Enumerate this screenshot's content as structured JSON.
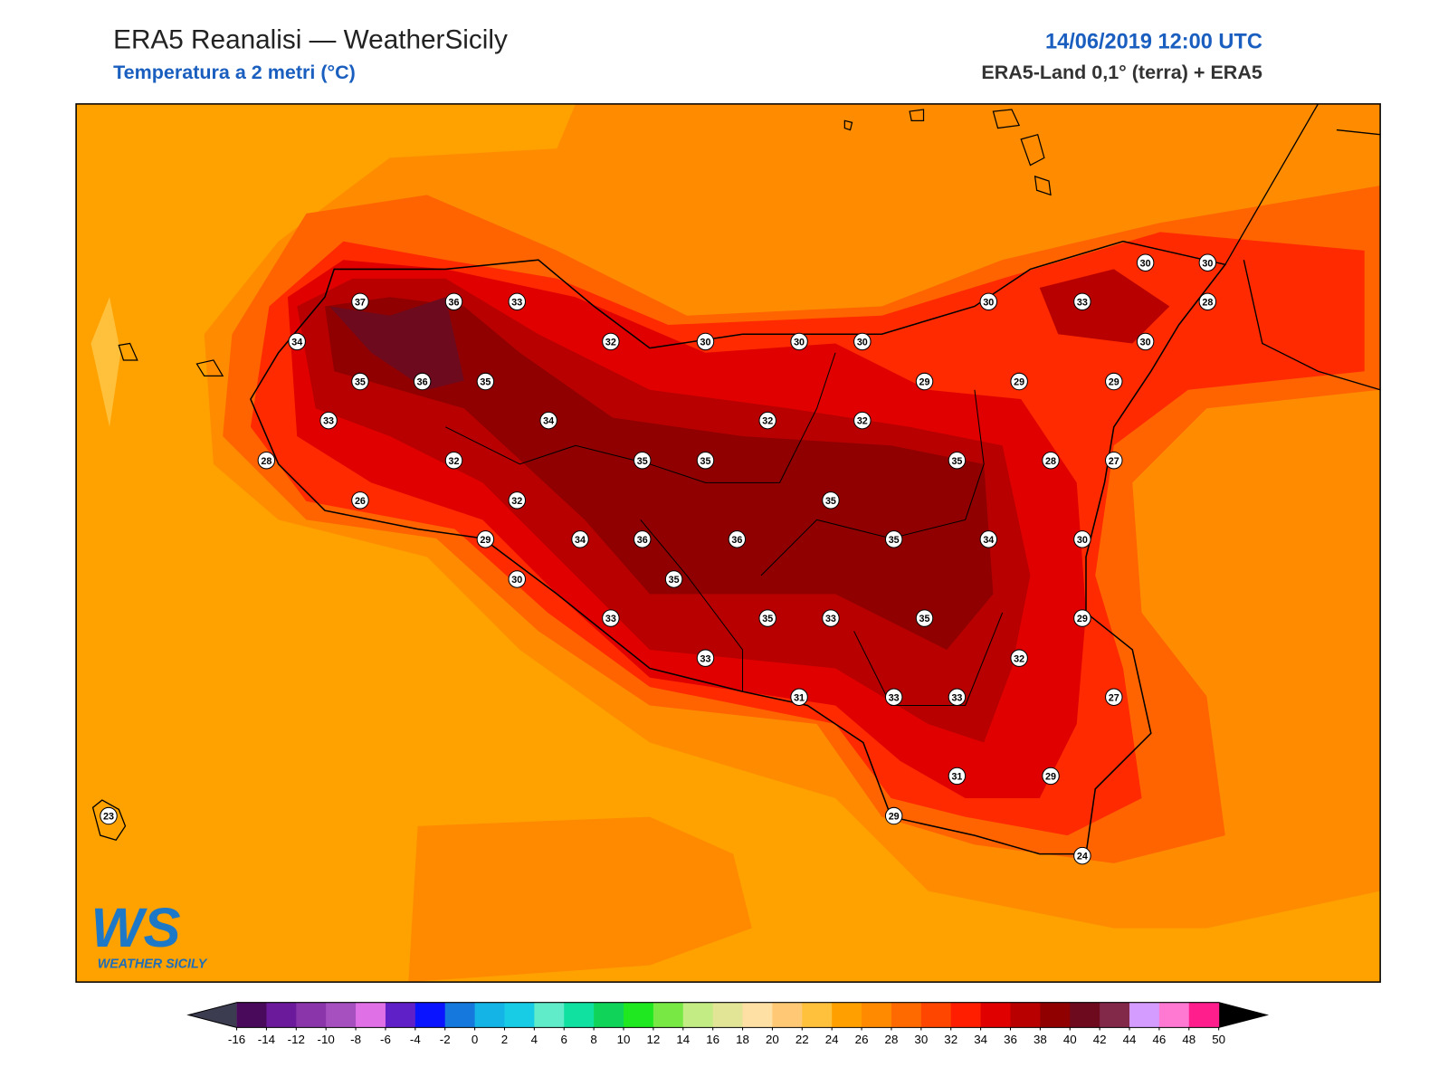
{
  "header": {
    "title": "ERA5 Reanalisi — WeatherSicily",
    "subtitle": "Temperatura a 2 metri (°C)",
    "datetime": "14/06/2019 12:00 UTC",
    "source": "ERA5-Land 0,1° (terra) + ERA5"
  },
  "stations": {
    "values": [
      37,
      36,
      33,
      34,
      32,
      30,
      30,
      30,
      30,
      33,
      30,
      30,
      28,
      30,
      35,
      36,
      35,
      29,
      29,
      29,
      33,
      34,
      32,
      32,
      28,
      32,
      35,
      35,
      35,
      28,
      27,
      26,
      32,
      35,
      29,
      34,
      36,
      36,
      35,
      34,
      30,
      30,
      35,
      33,
      35,
      33,
      35,
      29,
      33,
      32,
      31,
      33,
      33,
      27,
      31,
      29,
      29,
      24,
      23
    ]
  },
  "logo": {
    "mark": "WS",
    "text": "WEATHER SICILY"
  },
  "colorbar": {
    "ticks": [
      -16,
      -14,
      -12,
      -10,
      -8,
      -6,
      -4,
      -2,
      0,
      2,
      4,
      6,
      8,
      10,
      12,
      14,
      16,
      18,
      20,
      22,
      24,
      26,
      28,
      30,
      32,
      34,
      36,
      38,
      40,
      42,
      44,
      46,
      48,
      50
    ],
    "colors": [
      "#4a0a5c",
      "#6a1a9a",
      "#8a36aa",
      "#a650c0",
      "#e070e6",
      "#6020c8",
      "#0a14ff",
      "#1478dc",
      "#14b4e6",
      "#18cce6",
      "#60ecc8",
      "#10e0a0",
      "#10d45a",
      "#20e820",
      "#78e844",
      "#c4ec84",
      "#e2e496",
      "#ffe0a4",
      "#ffc874",
      "#ffc03c",
      "#ffa000",
      "#ff8a00",
      "#ff6a00",
      "#ff4600",
      "#ff1e00",
      "#e00000",
      "#b80000",
      "#900000",
      "#6e0a1e",
      "#822848",
      "#d49cff",
      "#ff78d2",
      "#ff1e8c",
      "#7a7a7a",
      "#3a3a3a"
    ],
    "under_color": "#3c3c50",
    "over_color": "#000000"
  }
}
